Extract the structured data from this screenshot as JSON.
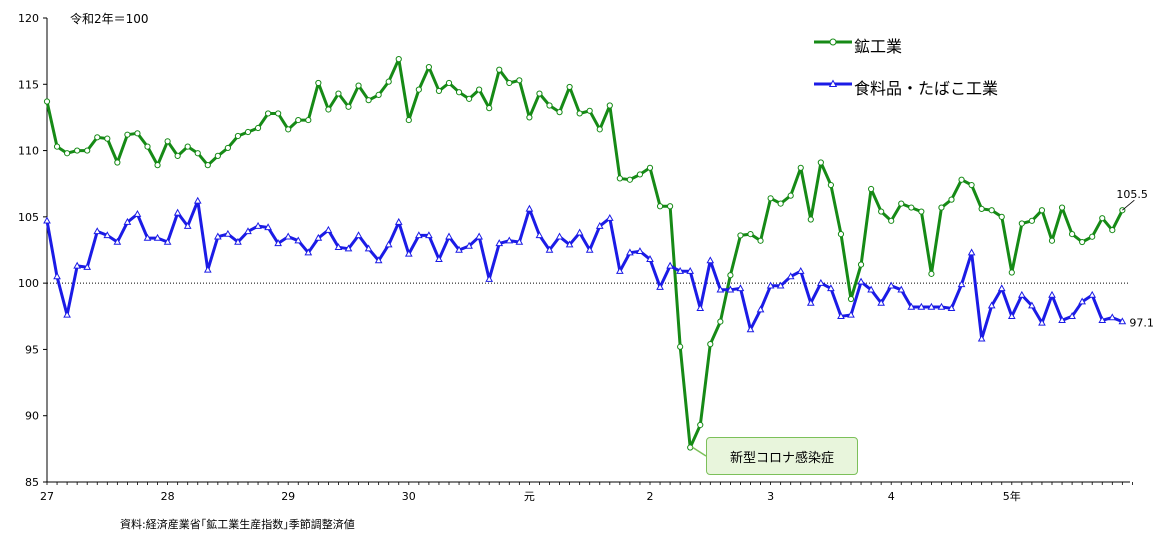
{
  "chart_data": {
    "type": "line",
    "unit_note": "令和2年＝100",
    "source": "資料:経済産業省｢鉱工業生産指数｣季節調整済値",
    "annotation": "新型コロナ感染症",
    "ylim": [
      85,
      120
    ],
    "y_ticks": [
      85,
      90,
      95,
      100,
      105,
      110,
      115,
      120
    ],
    "x_tick_labels": [
      "27",
      "28",
      "29",
      "30",
      "元",
      "2",
      "3",
      "4",
      "5年"
    ],
    "reference_line": 100,
    "end_labels": [
      "105.5",
      "97.1"
    ],
    "series": [
      {
        "name": "鉱工業",
        "color": "#168a16",
        "values": [
          113.7,
          110.3,
          109.8,
          110.0,
          110.0,
          111.0,
          110.9,
          109.1,
          111.2,
          111.3,
          110.3,
          108.9,
          110.7,
          109.6,
          110.3,
          109.8,
          108.9,
          109.6,
          110.2,
          111.1,
          111.4,
          111.7,
          112.8,
          112.8,
          111.6,
          112.3,
          112.3,
          115.1,
          113.1,
          114.3,
          113.3,
          114.9,
          113.8,
          114.2,
          115.2,
          116.9,
          112.3,
          114.6,
          116.3,
          114.5,
          115.1,
          114.4,
          113.9,
          114.6,
          113.2,
          116.1,
          115.1,
          115.3,
          112.5,
          114.3,
          113.4,
          112.9,
          114.8,
          112.8,
          113.0,
          111.6,
          113.4,
          107.9,
          107.8,
          108.2,
          108.7,
          105.8,
          105.8,
          95.2,
          87.6,
          89.3,
          95.4,
          97.1,
          100.6,
          103.6,
          103.7,
          103.2,
          106.4,
          106.0,
          106.6,
          108.7,
          104.8,
          109.1,
          107.4,
          103.7,
          98.8,
          101.4,
          107.1,
          105.4,
          104.7,
          106.0,
          105.7,
          105.4,
          100.7,
          105.7,
          106.3,
          107.8,
          107.4,
          105.6,
          105.5,
          105.0,
          100.8,
          104.5,
          104.7,
          105.5,
          103.2,
          105.7,
          103.7,
          103.1,
          103.5,
          104.9,
          104.0,
          105.5
        ]
      },
      {
        "name": "食料品・たばこ工業",
        "color": "#1b1be6",
        "values": [
          104.7,
          100.5,
          97.6,
          101.3,
          101.2,
          103.9,
          103.6,
          103.1,
          104.6,
          105.2,
          103.4,
          103.4,
          103.1,
          105.3,
          104.3,
          106.2,
          101.0,
          103.5,
          103.7,
          103.1,
          103.9,
          104.3,
          104.2,
          103.0,
          103.5,
          103.2,
          102.3,
          103.4,
          104.0,
          102.7,
          102.6,
          103.6,
          102.6,
          101.7,
          102.9,
          104.6,
          102.2,
          103.6,
          103.6,
          101.8,
          103.5,
          102.5,
          102.8,
          103.5,
          100.3,
          103.0,
          103.2,
          103.1,
          105.6,
          103.6,
          102.5,
          103.5,
          102.9,
          103.8,
          102.5,
          104.3,
          104.9,
          100.9,
          102.3,
          102.4,
          101.8,
          99.7,
          101.3,
          100.9,
          100.9,
          98.1,
          101.7,
          99.5,
          99.5,
          99.6,
          96.5,
          98.0,
          99.8,
          99.8,
          100.5,
          100.9,
          98.5,
          100.0,
          99.6,
          97.5,
          97.6,
          100.1,
          99.5,
          98.5,
          99.8,
          99.5,
          98.2,
          98.2,
          98.2,
          98.2,
          98.1,
          99.9,
          102.3,
          95.8,
          98.3,
          99.6,
          97.5,
          99.1,
          98.3,
          97.0,
          99.1,
          97.2,
          97.5,
          98.6,
          99.1,
          97.2,
          97.4,
          97.1
        ]
      }
    ]
  }
}
